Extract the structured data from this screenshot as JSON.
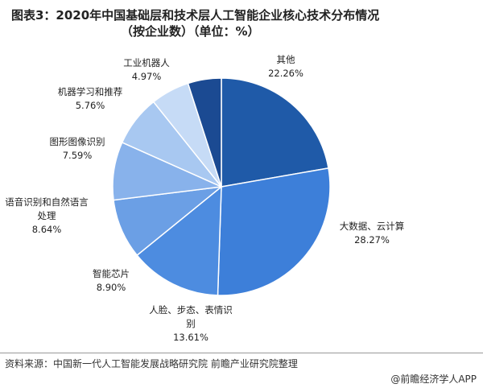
{
  "chart_data": {
    "type": "pie",
    "title": "图表3：2020年中国基础层和技术层人工智能企业核心技术分布情况",
    "subtitle": "（按企业数）（单位：%）",
    "categories": [
      "其他",
      "大数据、云计算",
      "人脸、步态、表情识别",
      "智能芯片",
      "语音识别和自然语言处理",
      "图形图像识别",
      "机器学习和推荐",
      "工业机器人"
    ],
    "values": [
      22.26,
      28.27,
      13.61,
      8.9,
      8.64,
      7.59,
      5.76,
      4.97
    ],
    "value_labels": [
      "22.26%",
      "28.27%",
      "13.61%",
      "8.90%",
      "8.64%",
      "7.59%",
      "5.76%",
      "4.97%"
    ],
    "colors": [
      "#1f5aa8",
      "#3d7fd9",
      "#4d8ce0",
      "#6b9fe5",
      "#88b2eb",
      "#a8c8f1",
      "#c6dbf6",
      "#1b4a92"
    ],
    "source": "资料来源：中国新一代人工智能发展战略研究院 前瞻产业研究院整理",
    "brand": "@前瞻经济学人APP"
  }
}
